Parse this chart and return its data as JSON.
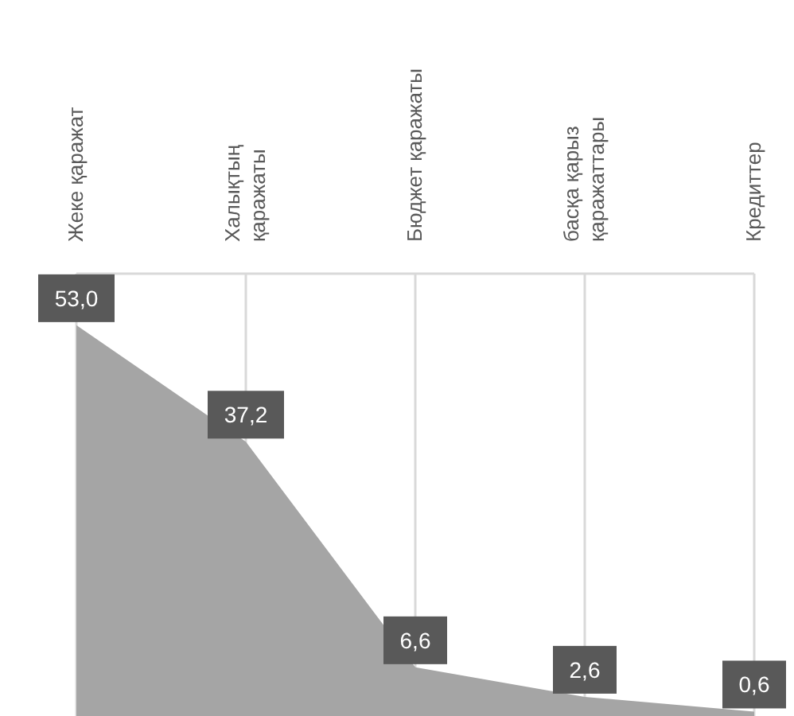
{
  "chart_data": {
    "type": "area",
    "categories": [
      "Жеке қаражат",
      "Халықтың қаражаты",
      "Бюджет қаражаты",
      "басқа қарыз қаражаттары",
      "Кредиттер"
    ],
    "series": [
      {
        "color": "#a5a5a5",
        "values": [
          53.0,
          37.2,
          6.6,
          2.6,
          0.6
        ],
        "value_labels": [
          "53,0",
          "37,2",
          "6,6",
          "2,6",
          "0,6"
        ]
      }
    ],
    "ylim": [
      0,
      60
    ],
    "grid": true,
    "tick_labels": "x"
  }
}
